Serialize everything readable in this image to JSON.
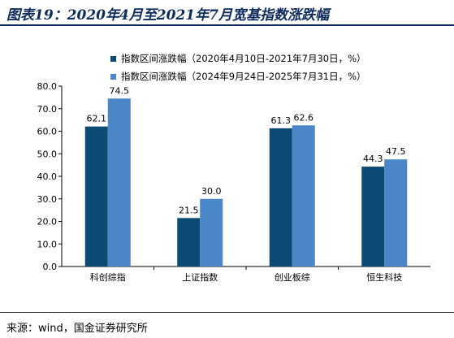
{
  "header": {
    "title": "图表19：2020年4月至2021年7月宽基指数涨跌幅"
  },
  "footer": {
    "source": "来源：wind，国金证券研究所"
  },
  "chart_data": {
    "type": "bar",
    "title": "",
    "xlabel": "",
    "ylabel": "",
    "ylim": [
      0,
      80
    ],
    "yticks": [
      "0.0",
      "10.0",
      "20.0",
      "30.0",
      "40.0",
      "50.0",
      "60.0",
      "70.0",
      "80.0"
    ],
    "categories": [
      "科创综指",
      "上证指数",
      "创业板综",
      "恒生科技"
    ],
    "series": [
      {
        "name": "指数区间涨跌幅（2020年4月10日-2021年7月30日，%）",
        "color": "#0b4a72",
        "values": [
          62.1,
          21.5,
          61.3,
          44.3
        ],
        "labels": [
          "62.1",
          "21.5",
          "61.3",
          "44.3"
        ]
      },
      {
        "name": "指数区间涨跌幅（2024年9月24日-2025年7月31日，%）",
        "color": "#4a86c8",
        "values": [
          74.5,
          30.0,
          62.6,
          47.5
        ],
        "labels": [
          "74.5",
          "30.0",
          "62.6",
          "47.5"
        ]
      }
    ],
    "grid": false,
    "legend_position": "top"
  }
}
